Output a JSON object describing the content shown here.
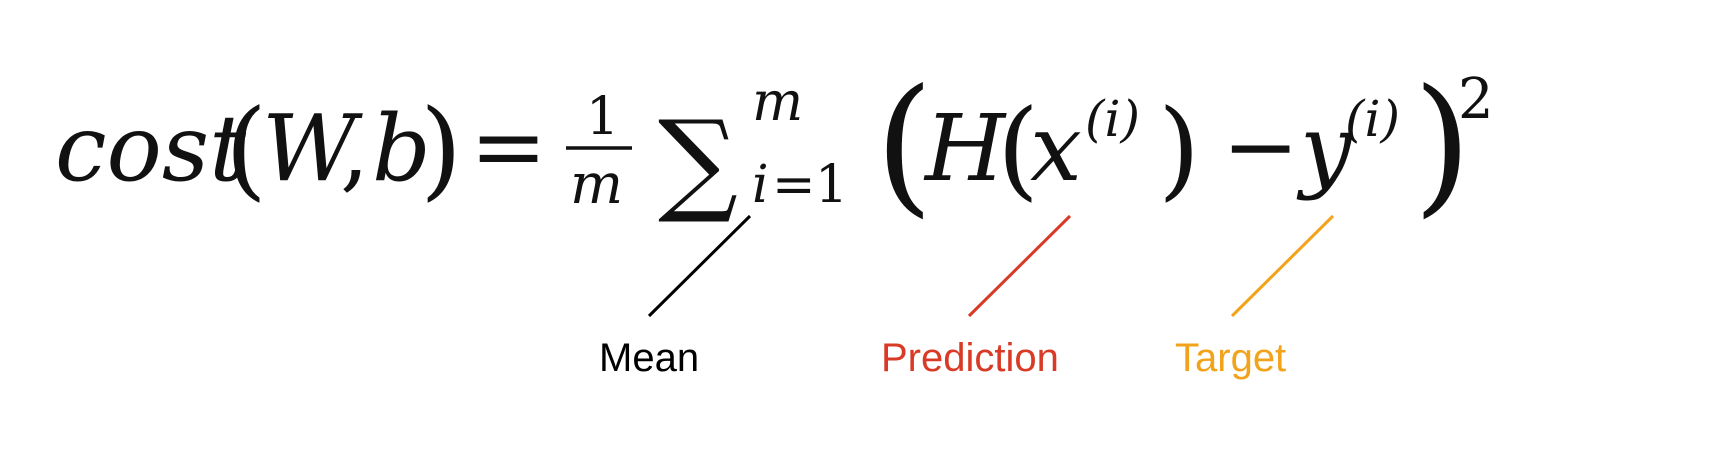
{
  "formula": {
    "lhs_name": "cost",
    "lhs_args_open": "(",
    "lhs_arg1": "W",
    "lhs_comma": ",",
    "lhs_arg2": "b",
    "lhs_args_close": ")",
    "equals": "=",
    "frac_numerator": "1",
    "frac_denominator": "m",
    "sum_symbol": "∑",
    "sum_upper": "m",
    "sum_lower_var": "i",
    "sum_lower_eq": "=",
    "sum_lower_start": "1",
    "paren_open": "(",
    "func_name": "H",
    "func_open": "(",
    "x_var": "x",
    "x_superscript": "(i)",
    "func_close": ")",
    "minus": "−",
    "y_var": "y",
    "y_superscript": "(i)",
    "paren_close": ")",
    "exponent": "2"
  },
  "annotations": {
    "mean": {
      "label": "Mean",
      "color": "#000000"
    },
    "prediction": {
      "label": "Prediction",
      "color": "#d93a26"
    },
    "target": {
      "label": "Target",
      "color": "#f2a31b"
    }
  }
}
